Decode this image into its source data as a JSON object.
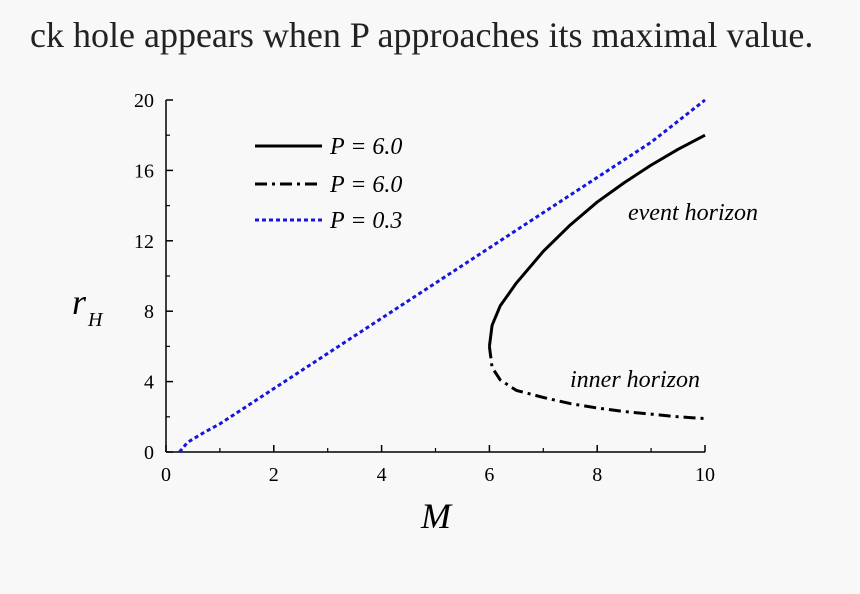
{
  "page": {
    "top_text": "ck hole appears when P approaches its maximal value."
  },
  "chart_data": {
    "type": "line",
    "xlabel": "M",
    "ylabel": "r",
    "ylabel_sub": "H",
    "xlim": [
      0,
      10
    ],
    "ylim": [
      0,
      20
    ],
    "x_ticks": [
      "0",
      "2",
      "4",
      "6",
      "8",
      "10"
    ],
    "y_ticks": [
      "0",
      "4",
      "8",
      "12",
      "16",
      "20"
    ],
    "grid": false,
    "legend_position": "top-left",
    "annotations": [
      {
        "text": "event horizon",
        "x": 9.2,
        "y": 13.8
      },
      {
        "text": "inner horizon",
        "x": 8.3,
        "y": 4.0
      }
    ],
    "series": [
      {
        "name": "P = 6.0",
        "style": "solid",
        "color": "#000000",
        "x": [
          6.0,
          6.05,
          6.2,
          6.5,
          7.0,
          7.5,
          8.0,
          8.5,
          9.0,
          9.5,
          10.0
        ],
        "y": [
          6.0,
          7.2,
          8.3,
          9.6,
          11.4,
          12.9,
          14.2,
          15.3,
          16.3,
          17.2,
          18.0
        ]
      },
      {
        "name": "P = 6.0",
        "style": "dashdot",
        "color": "#000000",
        "x": [
          6.0,
          6.05,
          6.2,
          6.5,
          7.0,
          7.5,
          8.0,
          8.5,
          9.0,
          9.5,
          10.0
        ],
        "y": [
          6.0,
          4.8,
          4.1,
          3.5,
          3.1,
          2.75,
          2.5,
          2.3,
          2.15,
          2.0,
          1.9
        ]
      },
      {
        "name": "P = 0.3",
        "style": "dotted",
        "color": "#1515dd",
        "x": [
          0.25,
          0.4,
          0.7,
          1.0,
          2.0,
          3.0,
          4.0,
          5.0,
          6.0,
          7.0,
          8.0,
          9.0,
          10.0
        ],
        "y": [
          0.0,
          0.55,
          1.1,
          1.6,
          3.6,
          5.6,
          7.6,
          9.6,
          11.6,
          13.6,
          15.6,
          17.6,
          20.0
        ]
      }
    ]
  }
}
